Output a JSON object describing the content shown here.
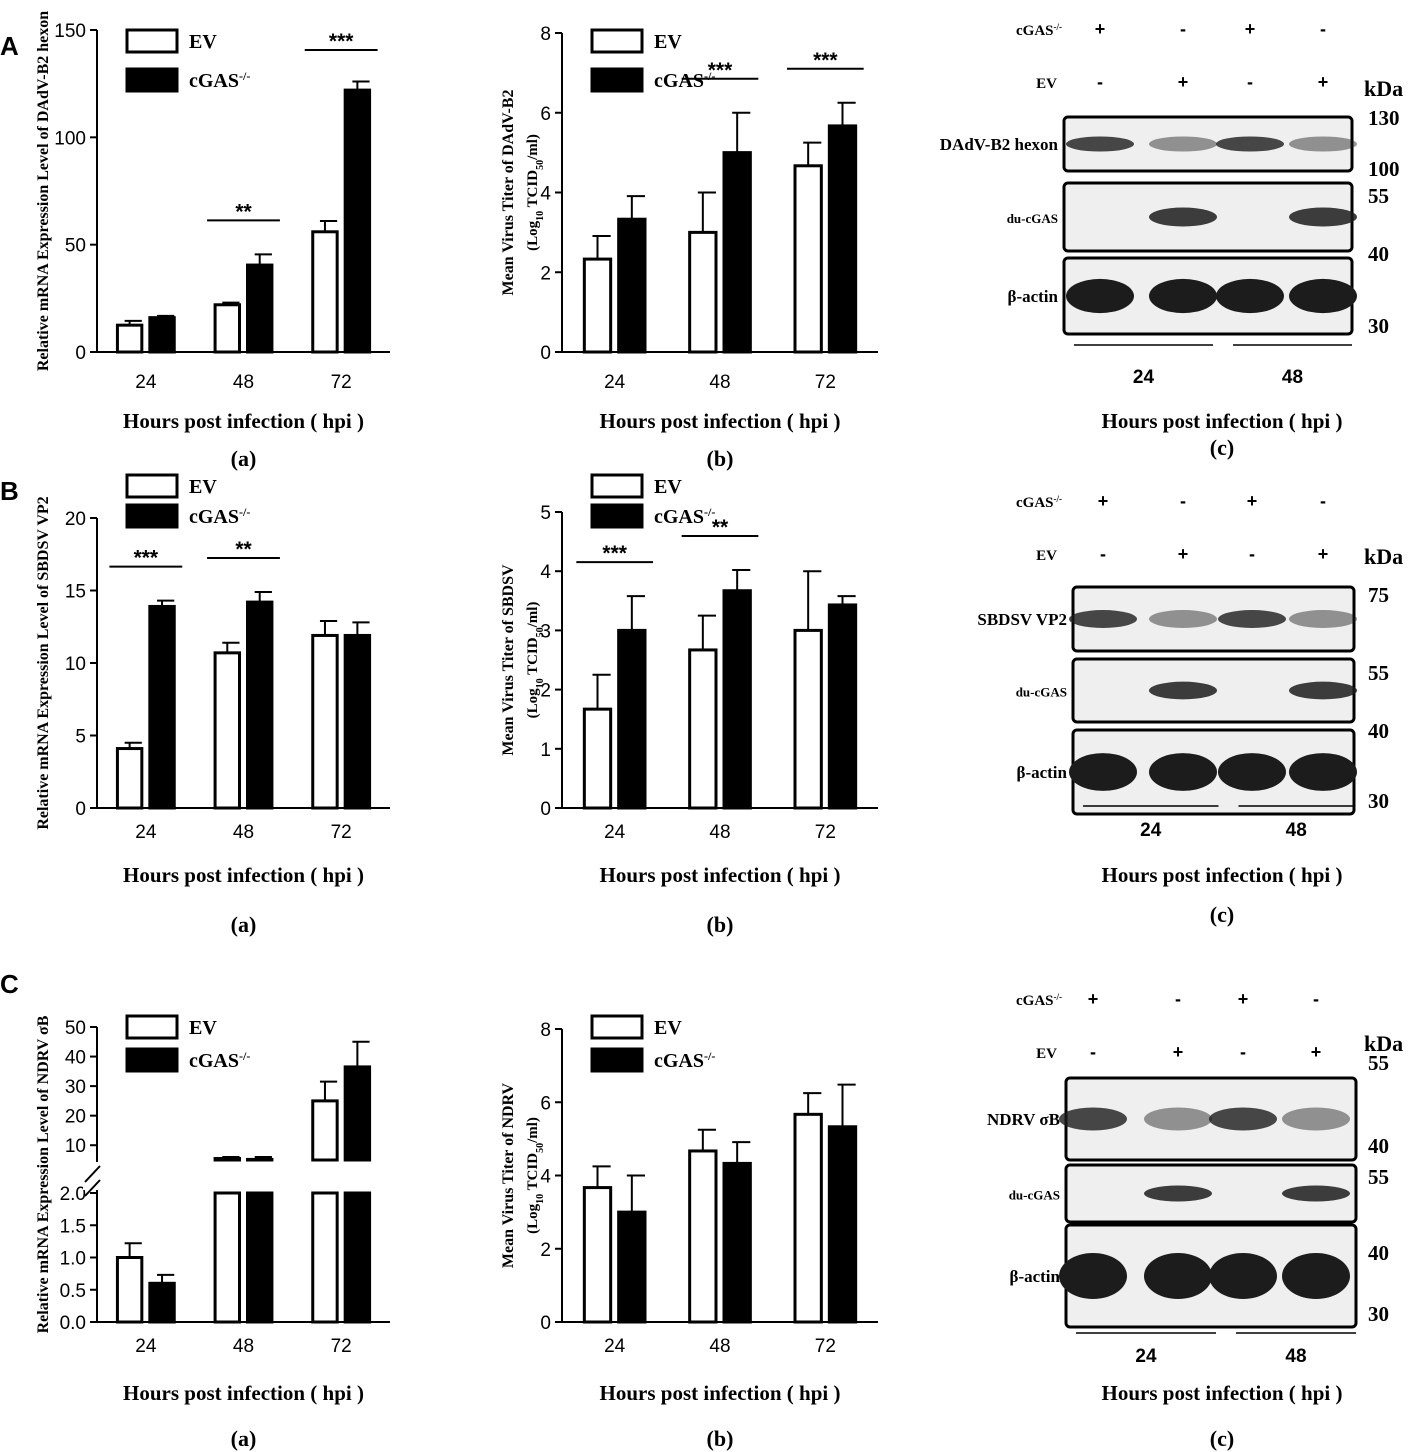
{
  "colors": {
    "ev": "#ffffff",
    "cgas": "#000000",
    "stroke": "#000000",
    "blot_bg": "#efefef",
    "band": "#1c1c1c"
  },
  "panels": [
    {
      "letter": "A",
      "chart_data": [
        {
          "type": "bar",
          "sub": "(a)",
          "xlabel": "Hours post infection ( hpi )",
          "ylabel": "Relative mRNA Expression Level of DAdV-B2 hexon",
          "categories": [
            "24",
            "48",
            "72"
          ],
          "series": [
            {
              "name": "EV",
              "values": [
                12.5,
                22,
                56
              ],
              "errors": [
                2,
                1,
                5
              ]
            },
            {
              "name": "cGAS-/-",
              "values": [
                16,
                40.5,
                122
              ],
              "errors": [
                0.8,
                5,
                4
              ]
            }
          ],
          "ylim": [
            0,
            150
          ],
          "yticks": [
            "0",
            "50",
            "100",
            "150"
          ],
          "sig": [
            {
              "cat": 1,
              "label": "**"
            },
            {
              "cat": 2,
              "label": "***"
            }
          ],
          "legend": "top-left"
        },
        {
          "type": "bar",
          "sub": "(b)",
          "xlabel": "Hours post infection ( hpi )",
          "ylabel": "Mean Virus Titer of DAdV-B2",
          "ylabel2": "(Log10 TCID50/ml)",
          "categories": [
            "24",
            "48",
            "72"
          ],
          "series": [
            {
              "name": "EV",
              "values": [
                2.33,
                3.0,
                4.67
              ],
              "errors": [
                0.58,
                1.0,
                0.58
              ]
            },
            {
              "name": "cGAS-/-",
              "values": [
                3.33,
                5.0,
                5.67
              ],
              "errors": [
                0.58,
                1.0,
                0.58
              ]
            }
          ],
          "ylim": [
            0,
            8
          ],
          "yticks": [
            "0",
            "2",
            "4",
            "6",
            "8"
          ],
          "sig": [
            {
              "cat": 1,
              "label": "***"
            },
            {
              "cat": 2,
              "label": "***"
            }
          ],
          "legend": "top-left"
        }
      ],
      "blot": {
        "sub": "(c)",
        "xlabel": "Hours post infection ( hpi )",
        "row1_label": "cGAS-/-",
        "row2_label": "EV",
        "row1_signs": [
          "+",
          "-",
          "+",
          "-"
        ],
        "row2_signs": [
          "-",
          "+",
          "-",
          "+"
        ],
        "kda": "kDa",
        "groups": [
          "24",
          "48"
        ],
        "bands": [
          "DAdV-B2 hexon",
          "du-cGAS",
          "β-actin"
        ],
        "markers": [
          "130",
          "100",
          "55",
          "40",
          "30"
        ]
      }
    },
    {
      "letter": "B",
      "chart_data": [
        {
          "type": "bar",
          "sub": "(a)",
          "xlabel": "Hours post infection ( hpi )",
          "ylabel": "Relative mRNA Expression Level of SBDSV VP2",
          "categories": [
            "24",
            "48",
            "72"
          ],
          "series": [
            {
              "name": "EV",
              "values": [
                4.1,
                10.7,
                11.9
              ],
              "errors": [
                0.4,
                0.7,
                1.0
              ]
            },
            {
              "name": "cGAS-/-",
              "values": [
                13.9,
                14.2,
                11.9
              ],
              "errors": [
                0.4,
                0.7,
                0.9
              ]
            }
          ],
          "ylim": [
            0,
            20
          ],
          "yticks": [
            "0",
            "5",
            "10",
            "15",
            "20"
          ],
          "sig": [
            {
              "cat": 0,
              "label": "***"
            },
            {
              "cat": 1,
              "label": "**"
            }
          ],
          "legend": "top-left"
        },
        {
          "type": "bar",
          "sub": "(b)",
          "xlabel": "Hours post infection ( hpi )",
          "ylabel": "Mean Virus Titer of SBDSV",
          "ylabel2": "(Log10 TCID50/ml)",
          "categories": [
            "24",
            "48",
            "72"
          ],
          "series": [
            {
              "name": "EV",
              "values": [
                1.67,
                2.67,
                3.0
              ],
              "errors": [
                0.58,
                0.58,
                1.0
              ]
            },
            {
              "name": "cGAS-/-",
              "values": [
                3.0,
                3.67,
                3.43
              ],
              "errors": [
                0.58,
                0.35,
                0.15
              ]
            }
          ],
          "ylim": [
            0,
            5
          ],
          "yticks": [
            "0",
            "1",
            "2",
            "3",
            "4",
            "5"
          ],
          "sig": [
            {
              "cat": 0,
              "label": "***"
            },
            {
              "cat": 1,
              "label": "**"
            }
          ],
          "legend": "top-left"
        }
      ],
      "blot": {
        "sub": "(c)",
        "xlabel": "Hours post infection ( hpi )",
        "row1_label": "cGAS-/-",
        "row2_label": "EV",
        "row1_signs": [
          "+",
          "-",
          "+",
          "-"
        ],
        "row2_signs": [
          "-",
          "+",
          "-",
          "+"
        ],
        "kda": "kDa",
        "groups": [
          "24",
          "48"
        ],
        "bands": [
          "SBDSV VP2",
          "du-cGAS",
          "β-actin"
        ],
        "markers": [
          "75",
          "55",
          "40",
          "30"
        ]
      }
    },
    {
      "letter": "C",
      "chart_data": [
        {
          "type": "bar",
          "sub": "(a)",
          "xlabel": "Hours post infection ( hpi )",
          "ylabel": "Relative mRNA Expression Level of NDRV σB",
          "categories": [
            "24",
            "48",
            "72"
          ],
          "series": [
            {
              "name": "EV",
              "values": [
                1.0,
                5.5,
                25
              ],
              "errors": [
                0.22,
                0.5,
                6.5
              ]
            },
            {
              "name": "cGAS-/-",
              "values": [
                0.6,
                5.2,
                36.5
              ],
              "errors": [
                0.13,
                0.8,
                8.5
              ]
            }
          ],
          "broken_axis": true,
          "ylim_lower": [
            0,
            2.0
          ],
          "yticks_lower": [
            "0.0",
            "0.5",
            "1.0",
            "1.5",
            "2.0"
          ],
          "ylim_upper": [
            2,
            50
          ],
          "yticks_upper": [
            "10",
            "20",
            "30",
            "40",
            "50"
          ],
          "legend": "top-left"
        },
        {
          "type": "bar",
          "sub": "(b)",
          "xlabel": "Hours post infection ( hpi )",
          "ylabel": "Mean Virus Titer of NDRV",
          "ylabel2": "(Log10 TCID50/ml)",
          "categories": [
            "24",
            "48",
            "72"
          ],
          "series": [
            {
              "name": "EV",
              "values": [
                3.67,
                4.67,
                5.67
              ],
              "errors": [
                0.58,
                0.58,
                0.58
              ]
            },
            {
              "name": "cGAS-/-",
              "values": [
                3.0,
                4.33,
                5.33
              ],
              "errors": [
                1.0,
                0.58,
                1.15
              ]
            }
          ],
          "ylim": [
            0,
            8
          ],
          "yticks": [
            "0",
            "2",
            "4",
            "6",
            "8"
          ],
          "legend": "top-left"
        }
      ],
      "blot": {
        "sub": "(c)",
        "xlabel": "Hours post infection ( hpi )",
        "row1_label": "cGAS-/-",
        "row2_label": "EV",
        "row1_signs": [
          "+",
          "-",
          "+",
          "-"
        ],
        "row2_signs": [
          "-",
          "+",
          "-",
          "+"
        ],
        "kda": "kDa",
        "groups": [
          "24",
          "48"
        ],
        "bands": [
          "NDRV σB",
          "du-cGAS",
          "β-actin"
        ],
        "markers": [
          "55",
          "40",
          "55",
          "40",
          "30"
        ]
      }
    }
  ]
}
